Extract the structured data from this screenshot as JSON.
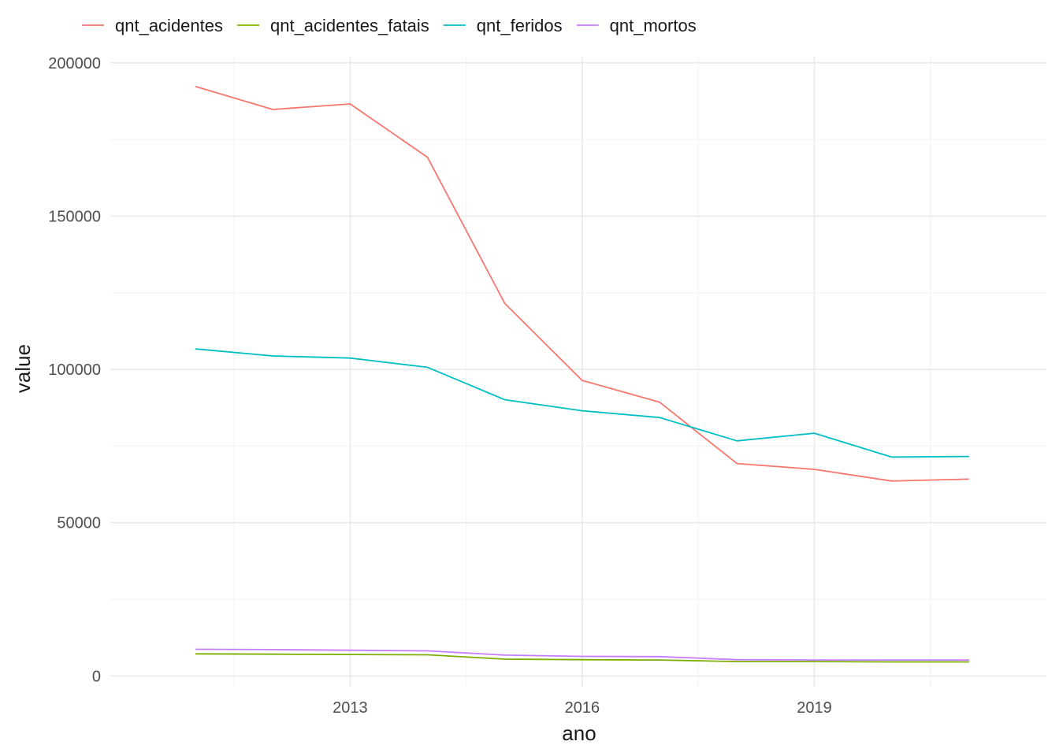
{
  "chart_data": {
    "type": "line",
    "xlabel": "ano",
    "ylabel": "value",
    "x": [
      2011,
      2012,
      2013,
      2014,
      2015,
      2016,
      2017,
      2018,
      2019,
      2020,
      2021
    ],
    "x_ticks": [
      2013,
      2016,
      2019
    ],
    "x_tick_labels": [
      "2013",
      "2016",
      "2019"
    ],
    "y_ticks": [
      0,
      50000,
      100000,
      150000,
      200000
    ],
    "y_tick_labels": [
      "0",
      "50000",
      "100000",
      "150000",
      "200000"
    ],
    "xlim": [
      2009.9,
      2022.0
    ],
    "ylim": [
      -3500,
      202000
    ],
    "grid": true,
    "legend_position": "top-left",
    "series": [
      {
        "name": "qnt_acidentes",
        "color": "#F8766D",
        "values": [
          192300,
          184800,
          186600,
          169200,
          121500,
          96400,
          89300,
          69300,
          67400,
          63600,
          64200
        ]
      },
      {
        "name": "qnt_acidentes_fatais",
        "color": "#7CAE00",
        "values": [
          7200,
          7100,
          7000,
          6900,
          5500,
          5300,
          5200,
          4700,
          4700,
          4600,
          4600
        ]
      },
      {
        "name": "qnt_feridos",
        "color": "#00BFC4",
        "values": [
          106700,
          104400,
          103700,
          100700,
          90100,
          86500,
          84300,
          76700,
          79200,
          71400,
          71600
        ]
      },
      {
        "name": "qnt_mortos",
        "color": "#C77CFF",
        "values": [
          8700,
          8600,
          8400,
          8200,
          6800,
          6400,
          6300,
          5300,
          5200,
          5200,
          5200
        ]
      }
    ]
  }
}
